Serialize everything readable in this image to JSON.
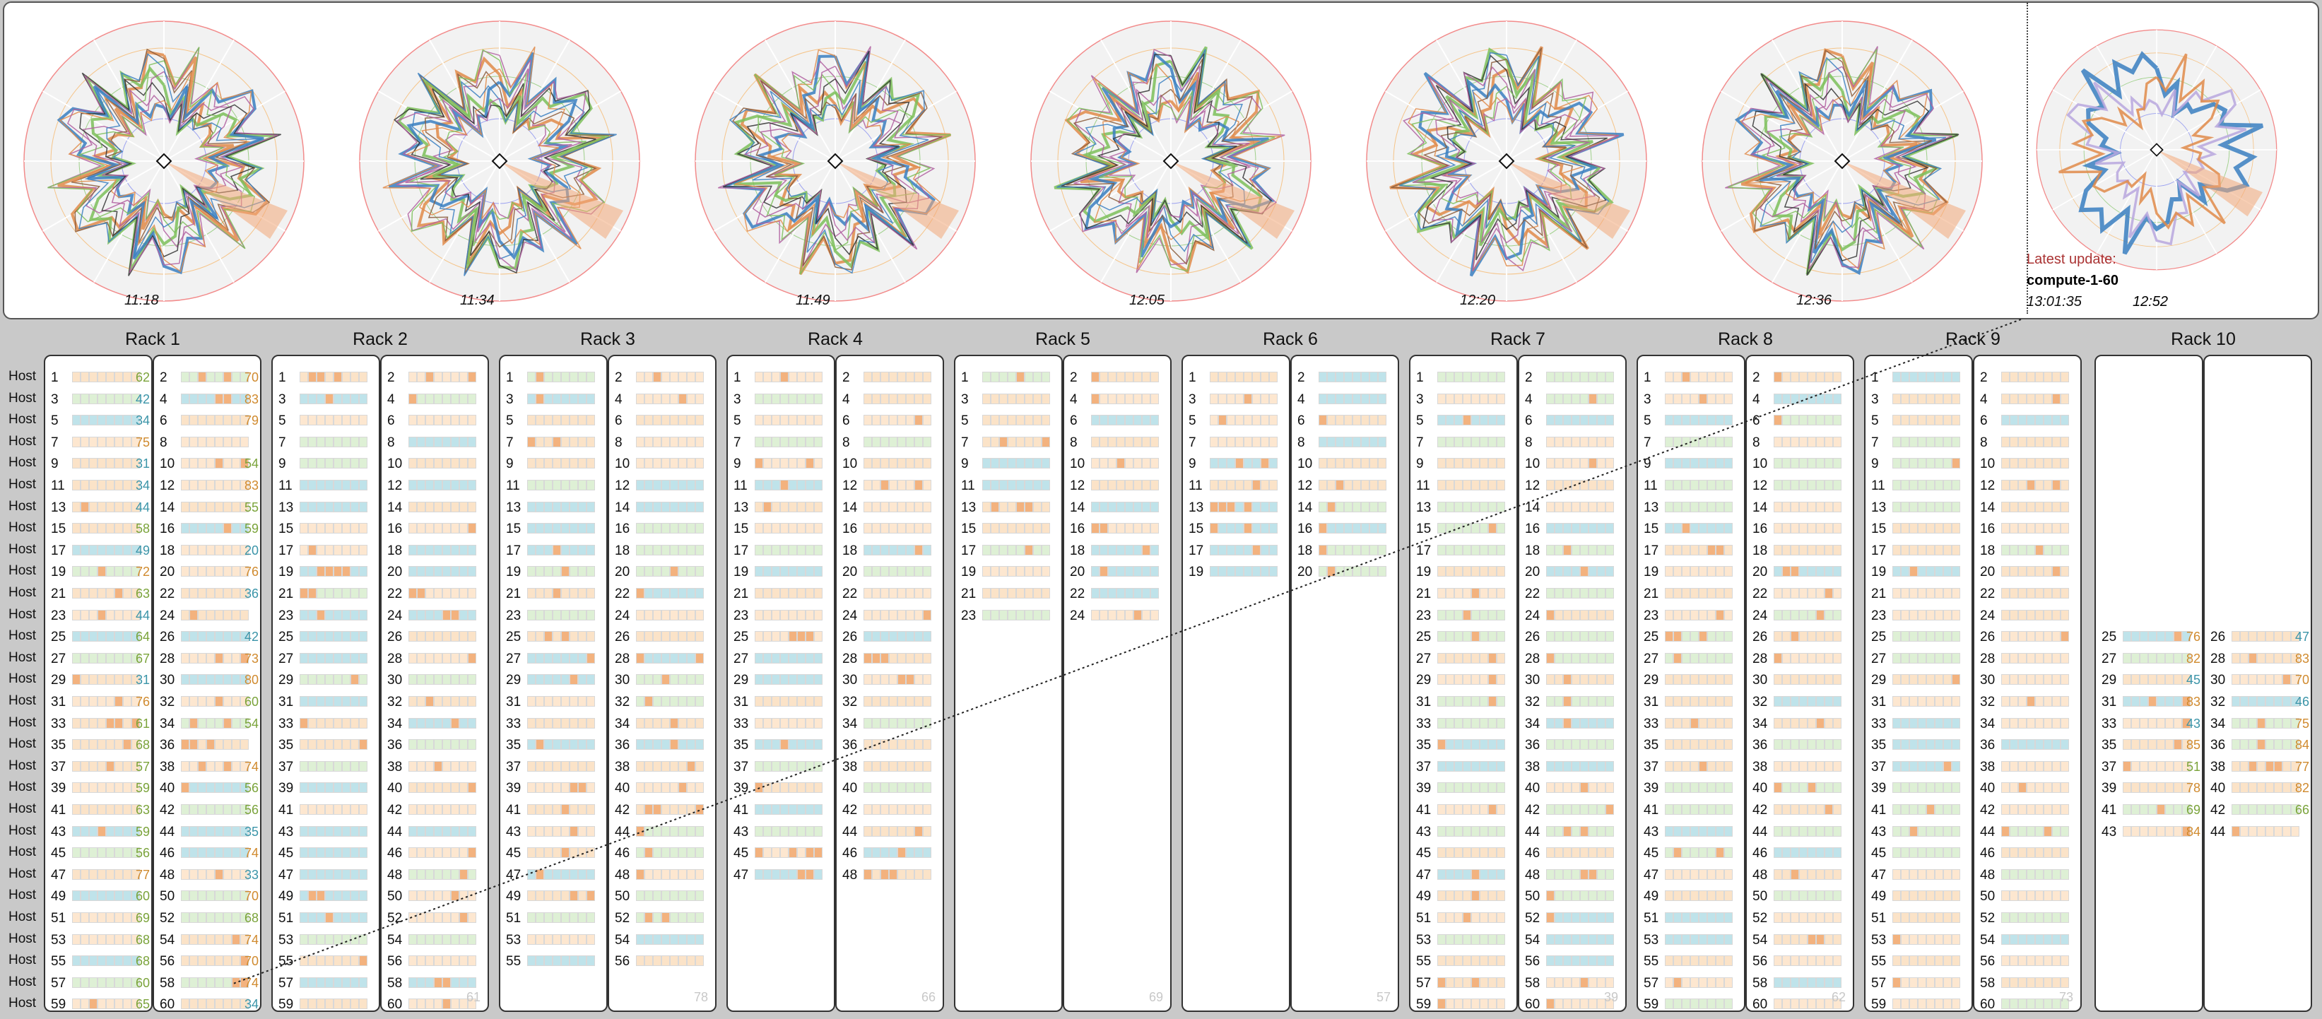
{
  "timeline": {
    "times": [
      "11:18",
      "11:34",
      "11:49",
      "12:05",
      "12:20",
      "12:36",
      "12:52"
    ],
    "latest_label": "Latest update:",
    "latest_node": "compute-1-60",
    "latest_time": "13:01:35",
    "latest_radar_time": "12:52"
  },
  "host_label": "Host",
  "colors": {
    "blue": "#3a7fc1",
    "orange": "#e08b4a",
    "green": "#7dbf5a",
    "teal": "#5aa7a0",
    "red": "#e8312d",
    "dark": "#555555",
    "lightblue": "#bfe3ea",
    "lightorange": "#fbe3c8"
  },
  "racks": [
    {
      "name": "Rack 1",
      "left": [
        1,
        3,
        5,
        7,
        9,
        11,
        13,
        15,
        17,
        19,
        21,
        23,
        25,
        27,
        29,
        31,
        33,
        35,
        37,
        39,
        41,
        43,
        45,
        47,
        49,
        51,
        53,
        55,
        57,
        59
      ],
      "right": [
        2,
        4,
        6,
        8,
        10,
        12,
        14,
        16,
        18,
        20,
        22,
        24,
        26,
        28,
        30,
        32,
        34,
        36,
        38,
        40,
        42,
        44,
        46,
        48,
        50,
        52,
        54,
        56,
        58,
        60
      ],
      "left_vals": [
        "62",
        "42",
        "34",
        "75",
        "31",
        "34",
        "44",
        "58",
        "49",
        "72",
        "63",
        "44",
        "64",
        "67",
        "31",
        "76",
        "61",
        "68",
        "57",
        "59",
        "63",
        "59",
        "56",
        "77",
        "60",
        "69",
        "68",
        "68",
        "60",
        "65"
      ],
      "right_vals": [
        "70",
        "83",
        "79",
        "",
        "54",
        "83",
        "55",
        "59",
        "20",
        "76",
        "36",
        "",
        "42",
        "73",
        "80",
        "60",
        "54",
        "",
        "74",
        "56",
        "56",
        "35",
        "74",
        "33",
        "70",
        "68",
        "74",
        "70",
        "74",
        "34"
      ]
    },
    {
      "name": "Rack 2",
      "left": [
        1,
        3,
        5,
        7,
        9,
        11,
        13,
        15,
        17,
        19,
        21,
        23,
        25,
        27,
        29,
        31,
        33,
        35,
        37,
        39,
        41,
        43,
        45,
        47,
        49,
        51,
        53,
        55,
        57,
        59
      ],
      "right": [
        2,
        4,
        6,
        8,
        10,
        12,
        14,
        16,
        18,
        20,
        22,
        24,
        26,
        28,
        30,
        32,
        34,
        36,
        38,
        40,
        42,
        44,
        46,
        48,
        50,
        52,
        54,
        56,
        58,
        60
      ],
      "left_vals": [],
      "right_vals": [],
      "corner": "61"
    },
    {
      "name": "Rack 3",
      "left": [
        1,
        3,
        5,
        7,
        9,
        11,
        13,
        15,
        17,
        19,
        21,
        23,
        25,
        27,
        29,
        31,
        33,
        35,
        37,
        39,
        41,
        43,
        45,
        47,
        49,
        51,
        53,
        55
      ],
      "right": [
        2,
        4,
        6,
        8,
        10,
        12,
        14,
        16,
        18,
        20,
        22,
        24,
        26,
        28,
        30,
        32,
        34,
        36,
        38,
        40,
        42,
        44,
        46,
        48,
        50,
        52,
        54,
        56
      ],
      "left_vals": [],
      "right_vals": [],
      "corner": "78"
    },
    {
      "name": "Rack 4",
      "left": [
        1,
        3,
        5,
        7,
        9,
        11,
        13,
        15,
        17,
        19,
        21,
        23,
        25,
        27,
        29,
        31,
        33,
        35,
        37,
        39,
        41,
        43,
        45,
        47
      ],
      "right": [
        2,
        4,
        6,
        8,
        10,
        12,
        14,
        16,
        18,
        20,
        22,
        24,
        26,
        28,
        30,
        32,
        34,
        36,
        38,
        40,
        42,
        44,
        46,
        48
      ],
      "left_vals": [],
      "right_vals": [],
      "corner": "66"
    },
    {
      "name": "Rack 5",
      "left": [
        1,
        3,
        5,
        7,
        9,
        11,
        13,
        15,
        17,
        19,
        21,
        23
      ],
      "right": [
        2,
        4,
        6,
        8,
        10,
        12,
        14,
        16,
        18,
        20,
        22,
        24
      ],
      "left_vals": [],
      "right_vals": [],
      "corner": "69"
    },
    {
      "name": "Rack 6",
      "left": [
        1,
        3,
        5,
        7,
        9,
        11,
        13,
        15,
        17,
        19
      ],
      "right": [
        2,
        4,
        6,
        8,
        10,
        12,
        14,
        16,
        18,
        20
      ],
      "left_vals": [],
      "right_vals": [],
      "corner": "57"
    },
    {
      "name": "Rack 7",
      "left": [
        1,
        3,
        5,
        7,
        9,
        11,
        13,
        15,
        17,
        19,
        21,
        23,
        25,
        27,
        29,
        31,
        33,
        35,
        37,
        39,
        41,
        43,
        45,
        47,
        49,
        51,
        53,
        55,
        57,
        59
      ],
      "right": [
        2,
        4,
        6,
        8,
        10,
        12,
        14,
        16,
        18,
        20,
        22,
        24,
        26,
        28,
        30,
        32,
        34,
        36,
        38,
        40,
        42,
        44,
        46,
        48,
        50,
        52,
        54,
        56,
        58,
        60
      ],
      "left_vals": [],
      "right_vals": [],
      "corner": "39"
    },
    {
      "name": "Rack 8",
      "left": [
        1,
        3,
        5,
        7,
        9,
        11,
        13,
        15,
        17,
        19,
        21,
        23,
        25,
        27,
        29,
        31,
        33,
        35,
        37,
        39,
        41,
        43,
        45,
        47,
        49,
        51,
        53,
        55,
        57,
        59
      ],
      "right": [
        2,
        4,
        6,
        8,
        10,
        12,
        14,
        16,
        18,
        20,
        22,
        24,
        26,
        28,
        30,
        32,
        34,
        36,
        38,
        40,
        42,
        44,
        46,
        48,
        50,
        52,
        54,
        56,
        58,
        60
      ],
      "left_vals": [],
      "right_vals": [],
      "corner": "62"
    },
    {
      "name": "Rack 9",
      "left": [
        1,
        3,
        5,
        7,
        9,
        11,
        13,
        15,
        17,
        19,
        21,
        23,
        25,
        27,
        29,
        31,
        33,
        35,
        37,
        39,
        41,
        43,
        45,
        47,
        49,
        51,
        53,
        55,
        57,
        59
      ],
      "right": [
        2,
        4,
        6,
        8,
        10,
        12,
        14,
        16,
        18,
        20,
        22,
        24,
        26,
        28,
        30,
        32,
        34,
        36,
        38,
        40,
        42,
        44,
        46,
        48,
        50,
        52,
        54,
        56,
        58,
        60
      ],
      "left_vals": [],
      "right_vals": [],
      "corner": "73"
    },
    {
      "name": "Rack 10",
      "left": [
        25,
        27,
        29,
        31,
        33,
        35,
        37,
        39,
        41,
        43
      ],
      "right": [
        26,
        28,
        30,
        32,
        34,
        36,
        38,
        40,
        42,
        44
      ],
      "left_vals": [
        "76",
        "82",
        "45",
        "83",
        "43",
        "85",
        "51",
        "78",
        "69",
        "84"
      ],
      "right_vals": [
        "47",
        "83",
        "70",
        "46",
        "75",
        "84",
        "77",
        "82",
        "66",
        ""
      ]
    }
  ]
}
